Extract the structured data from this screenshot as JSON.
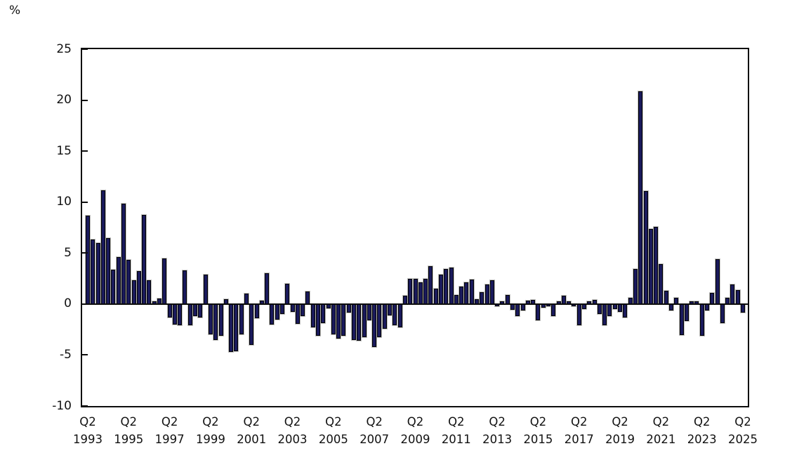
{
  "figure": {
    "unit_label": "%"
  },
  "chart_data": {
    "type": "bar",
    "title": "",
    "ylabel": "%",
    "xlabel": "",
    "ylim": [
      -10,
      25
    ],
    "yticks": [
      25,
      20,
      15,
      10,
      5,
      0,
      -5,
      -10
    ],
    "grid": false,
    "legend": null,
    "bar_color": "#1a1a5c",
    "frequency": "quarterly",
    "series_start": "1993 Q2",
    "series_end": "2025 Q2",
    "x_axis": {
      "tick_quarter_label": "Q2",
      "tick_years": [
        "1993",
        "1995",
        "1997",
        "1999",
        "2001",
        "2003",
        "2005",
        "2007",
        "2009",
        "2011",
        "2013",
        "2015",
        "2017",
        "2019",
        "2021",
        "2023",
        "2025"
      ],
      "tick_every_n_bars": 8
    },
    "values": [
      8.7,
      6.35,
      6.0,
      11.15,
      6.45,
      3.4,
      4.6,
      9.85,
      4.3,
      2.3,
      3.2,
      8.75,
      2.3,
      0.3,
      0.55,
      4.5,
      -1.3,
      -2.0,
      -2.1,
      3.3,
      -2.1,
      -1.2,
      -1.3,
      2.85,
      -3.0,
      -3.55,
      -3.1,
      0.45,
      -4.7,
      -4.6,
      -3.0,
      1.0,
      -4.0,
      -1.4,
      0.35,
      3.05,
      -2.0,
      -1.5,
      -1.0,
      2.0,
      -0.8,
      -1.95,
      -1.2,
      1.2,
      -2.3,
      -3.1,
      -1.85,
      -0.45,
      -3.0,
      -3.4,
      -3.1,
      -0.85,
      -3.5,
      -3.6,
      -3.25,
      -1.6,
      -4.2,
      -3.25,
      -2.4,
      -1.1,
      -2.1,
      -2.3,
      0.85,
      2.5,
      2.5,
      2.1,
      2.45,
      3.7,
      1.5,
      2.9,
      3.45,
      3.6,
      0.9,
      1.7,
      2.1,
      2.4,
      0.5,
      1.15,
      1.9,
      2.3,
      -0.25,
      0.25,
      0.9,
      -0.55,
      -1.15,
      -0.65,
      0.35,
      0.4,
      -1.6,
      -0.35,
      -0.25,
      -1.2,
      0.25,
      0.85,
      0.25,
      -0.25,
      -2.1,
      -0.5,
      0.25,
      0.4,
      -1.0,
      -2.1,
      -1.15,
      -0.5,
      -0.8,
      -1.3,
      0.6,
      3.45,
      20.9,
      11.1,
      7.35,
      7.6,
      3.9,
      1.3,
      -0.65,
      0.6,
      -3.05,
      -1.65,
      0.25,
      0.25,
      -3.1,
      -0.6,
      1.1,
      4.4,
      -1.85,
      0.6,
      1.9,
      1.4,
      -0.85
    ]
  }
}
